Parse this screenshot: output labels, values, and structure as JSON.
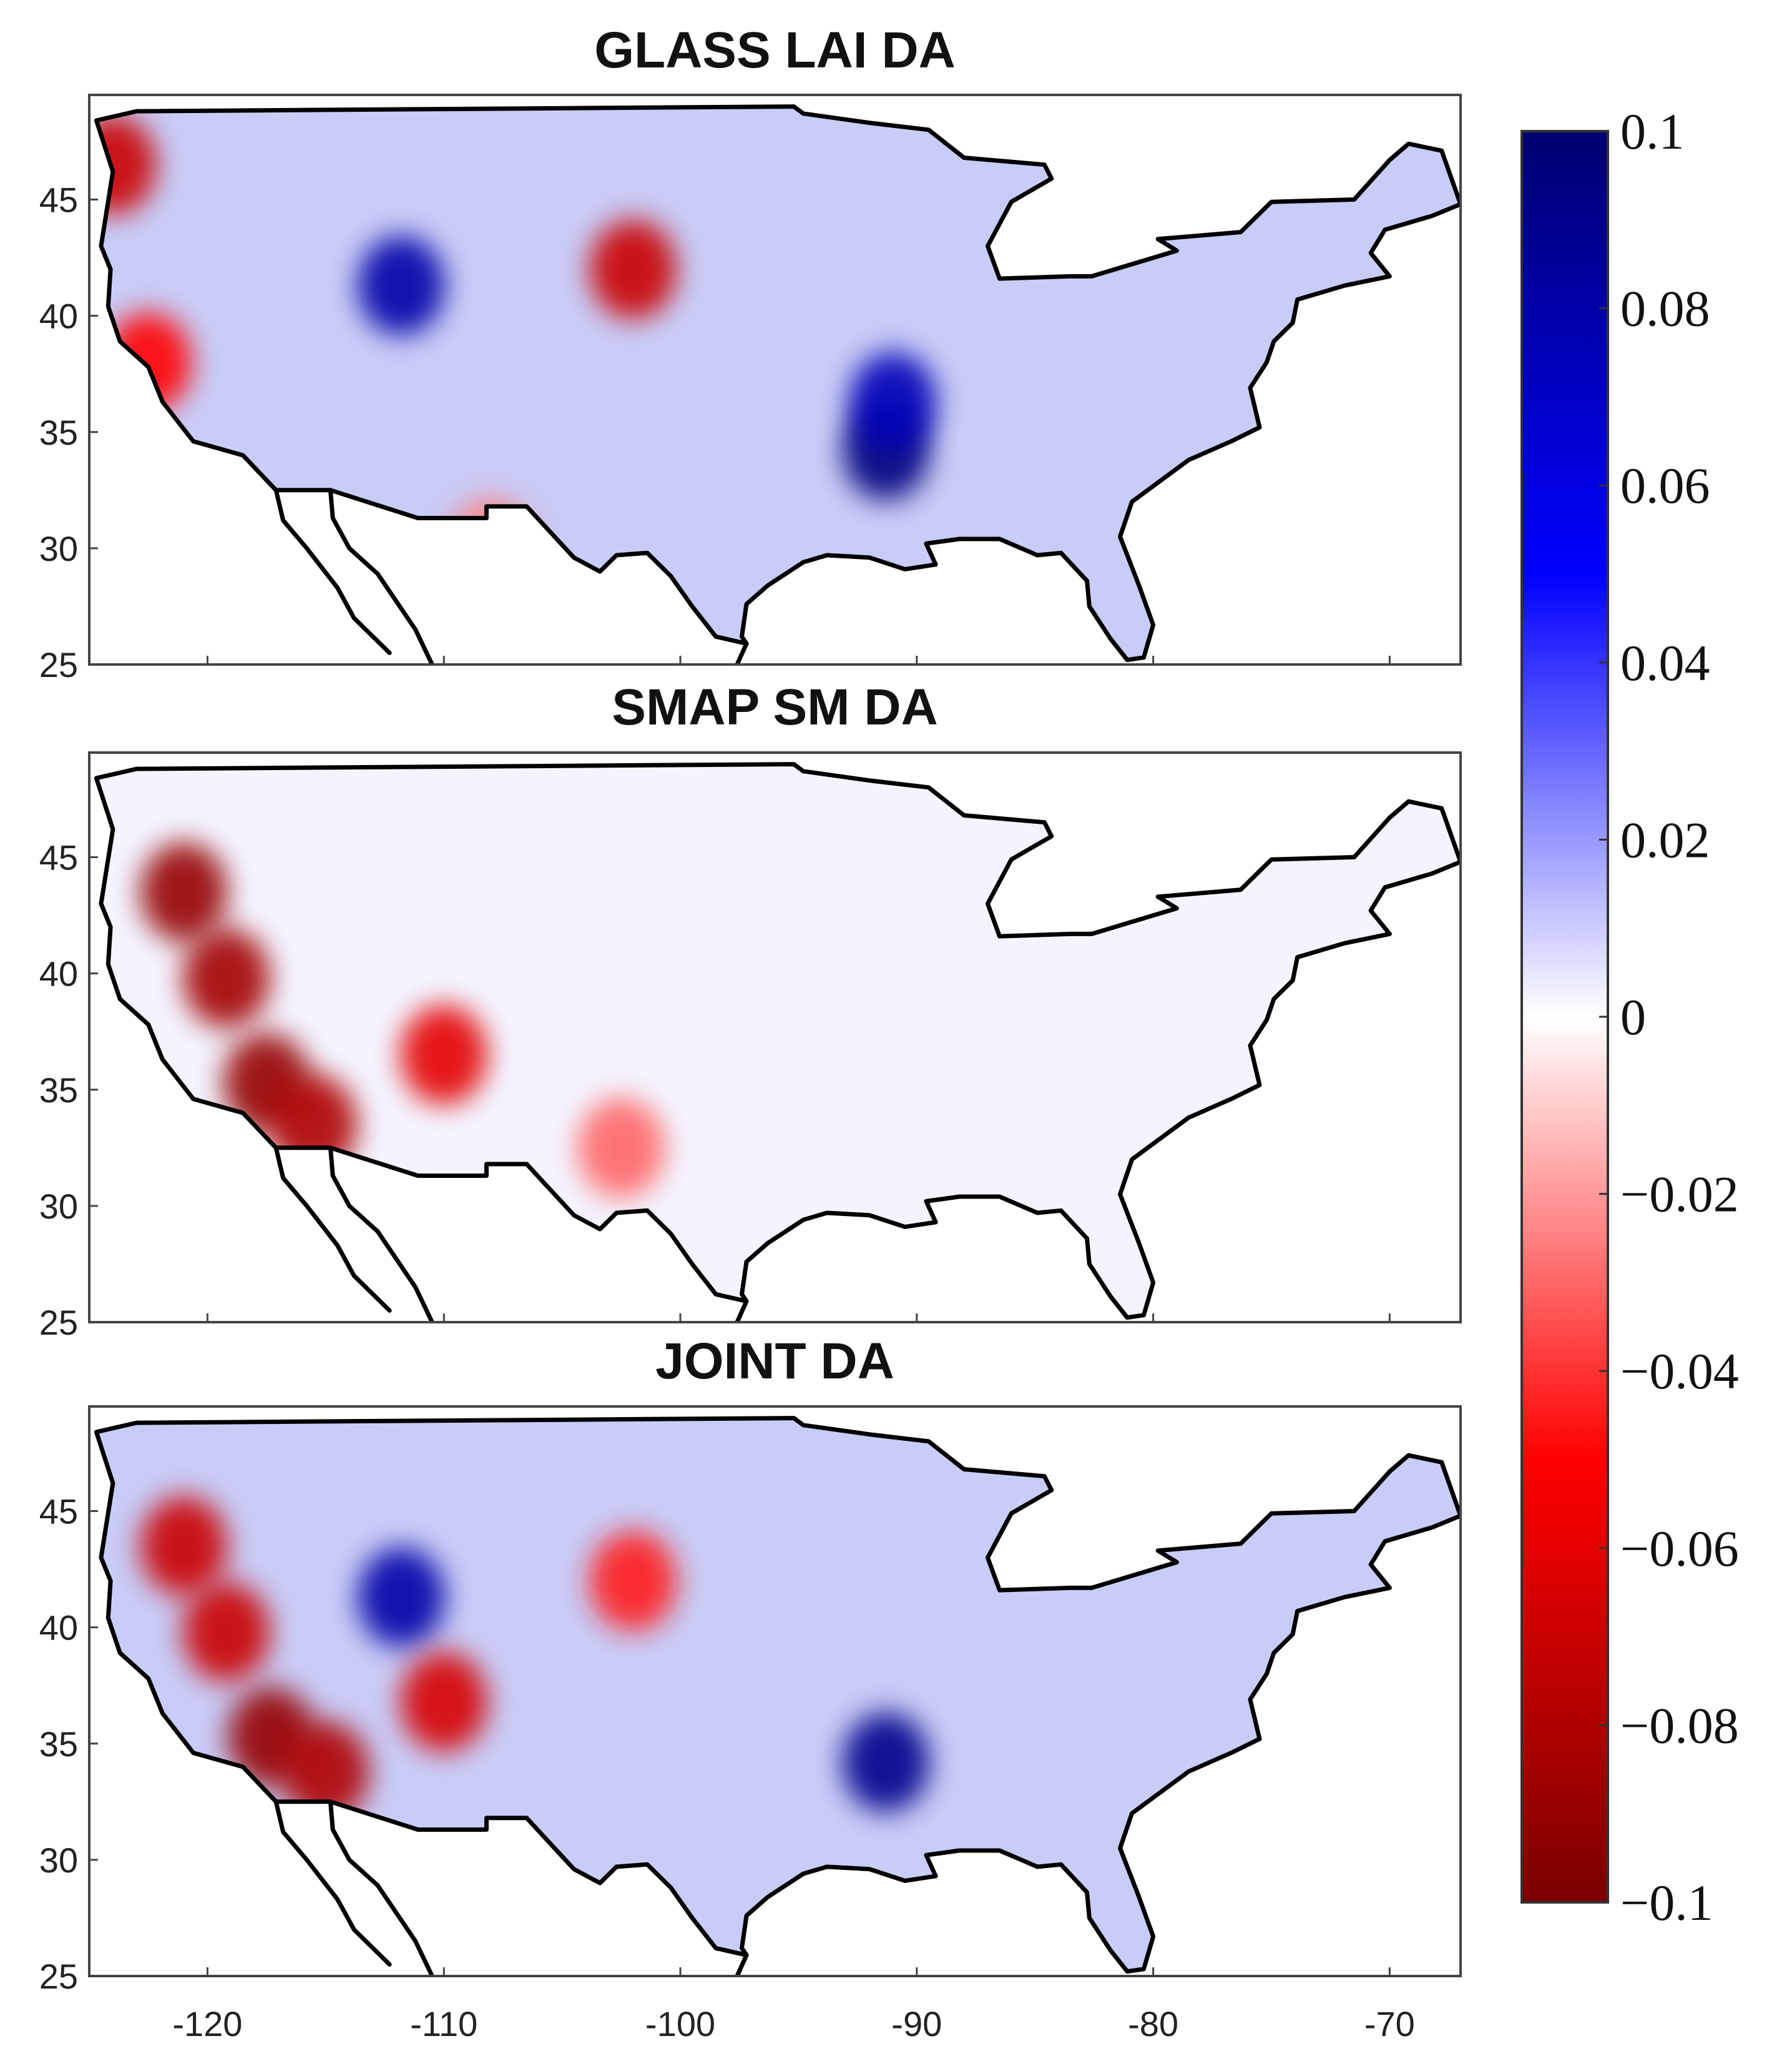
{
  "chart_data": {
    "type": "heatmap",
    "subplots": [
      {
        "title": "GLASS LAI DA",
        "region": "Contiguous United States",
        "pattern": "mostly positive (blue) values nationwide; strongest positive cluster in lower Mississippi valley near -91, 32-36; negative (red) cells along Pacific coast and a red patch near -102, 42",
        "hotspots": [
          {
            "lon": -91.3,
            "lat": 34.2,
            "value": 0.095
          },
          {
            "lon": -91.0,
            "lat": 36.3,
            "value": 0.075
          },
          {
            "lon": -111.8,
            "lat": 41.3,
            "value": 0.08
          },
          {
            "lon": -102.0,
            "lat": 42.0,
            "value": -0.07
          },
          {
            "lon": -124.0,
            "lat": 46.5,
            "value": -0.07
          },
          {
            "lon": -122.5,
            "lat": 38.0,
            "value": -0.05
          },
          {
            "lon": -108.0,
            "lat": 30.0,
            "value": -0.025
          }
        ]
      },
      {
        "title": "SMAP SM DA",
        "region": "Contiguous United States",
        "pattern": "near-zero almost everywhere; strong negative (red) values in California Central Valley and southern California, plus a patch near -110, 36.5",
        "hotspots": [
          {
            "lon": -117.5,
            "lat": 35.3,
            "value": -0.09
          },
          {
            "lon": -115.5,
            "lat": 33.5,
            "value": -0.08
          },
          {
            "lon": -119.2,
            "lat": 39.8,
            "value": -0.085
          },
          {
            "lon": -121.0,
            "lat": 43.5,
            "value": -0.09
          },
          {
            "lon": -110.0,
            "lat": 36.5,
            "value": -0.06
          },
          {
            "lon": -102.5,
            "lat": 32.5,
            "value": -0.03
          }
        ]
      },
      {
        "title": "JOINT DA",
        "region": "Contiguous United States",
        "pattern": "combination of both: positive (blue) across the east and lower Mississippi valley; strong negative (red) in California and the interior west",
        "hotspots": [
          {
            "lon": -91.3,
            "lat": 34.2,
            "value": 0.09
          },
          {
            "lon": -111.8,
            "lat": 41.3,
            "value": 0.08
          },
          {
            "lon": -117.3,
            "lat": 35.3,
            "value": -0.09
          },
          {
            "lon": -115.0,
            "lat": 33.8,
            "value": -0.08
          },
          {
            "lon": -119.2,
            "lat": 39.8,
            "value": -0.07
          },
          {
            "lon": -110.0,
            "lat": 36.8,
            "value": -0.065
          },
          {
            "lon": -102.0,
            "lat": 42.0,
            "value": -0.045
          },
          {
            "lon": -121.0,
            "lat": 43.5,
            "value": -0.07
          }
        ]
      }
    ],
    "xlim": [
      -125,
      -67
    ],
    "ylim": [
      25,
      49.5
    ],
    "xticks": [
      -120,
      -110,
      -100,
      -90,
      -80,
      -70
    ],
    "xtick_labels": [
      "-120",
      "-110",
      "-100",
      "-90",
      "-80",
      "-70"
    ],
    "yticks": [
      25,
      30,
      35,
      40,
      45
    ],
    "ytick_labels": [
      "25",
      "30",
      "35",
      "40",
      "45"
    ],
    "colorbar": {
      "range": [
        -0.1,
        0.1
      ],
      "ticks": [
        0.1,
        0.08,
        0.06,
        0.04,
        0.02,
        0,
        -0.02,
        -0.04,
        -0.06,
        -0.08,
        -0.1
      ],
      "tick_labels": [
        "0.1",
        "0.08",
        "0.06",
        "0.04",
        "0.02",
        "0",
        "−0.02",
        "−0.04",
        "−0.06",
        "−0.08",
        "−0.1"
      ],
      "colormap": [
        "#7a0000",
        "#ff0000",
        "#ffffff",
        "#0000ff",
        "#00006e"
      ]
    },
    "grid": false,
    "xlabel": "",
    "ylabel": ""
  }
}
